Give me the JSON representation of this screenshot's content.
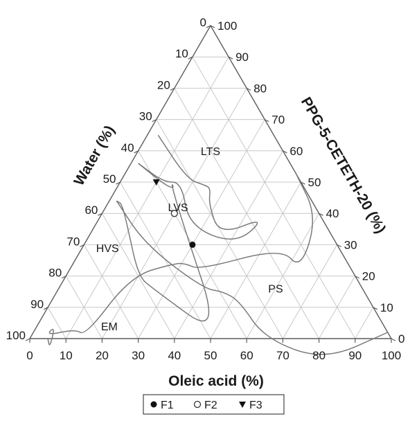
{
  "chart_data": {
    "type": "ternary",
    "axes": {
      "bottom": {
        "label": "Oleic acid (%)",
        "ticks": [
          "0",
          "10",
          "20",
          "30",
          "40",
          "50",
          "60",
          "70",
          "80",
          "90",
          "100"
        ]
      },
      "left": {
        "label": "Water (%)",
        "ticks": [
          "0",
          "10",
          "20",
          "30",
          "40",
          "50",
          "60",
          "70",
          "80",
          "90",
          "100"
        ]
      },
      "right": {
        "label": "PPG-5-CETETH-20 (%)",
        "ticks": [
          "0",
          "10",
          "20",
          "30",
          "40",
          "50",
          "60",
          "70",
          "80",
          "90",
          "100"
        ]
      }
    },
    "regions": [
      {
        "label": "LTS",
        "oleic": 20,
        "water": 20
      },
      {
        "label": "LVS",
        "oleic": 20,
        "water": 38
      },
      {
        "label": "HVS",
        "oleic": 7,
        "water": 64
      },
      {
        "label": "PS",
        "oleic": 60,
        "water": 24
      },
      {
        "label": "EM",
        "oleic": 20,
        "water": 76
      }
    ],
    "boundaries": [
      {
        "name": "lvs-region-boundary",
        "points": [
          [
            3,
            32
          ],
          [
            18,
            31
          ],
          [
            24,
            27
          ],
          [
            26,
            26
          ],
          [
            28,
            29
          ],
          [
            36,
            31
          ],
          [
            46,
            15
          ],
          [
            42,
            28
          ],
          [
            26,
            38
          ],
          [
            17,
            33
          ],
          [
            12,
            38
          ],
          [
            2,
            42
          ]
        ]
      },
      {
        "name": "hvs-region-boundary",
        "points": [
          [
            2,
            54
          ],
          [
            4,
            53
          ],
          [
            9,
            55
          ],
          [
            20,
            60
          ],
          [
            26,
            58
          ],
          [
            53,
            47
          ],
          [
            23,
            39
          ],
          [
            14,
            36
          ],
          [
            16,
            36
          ],
          [
            13,
            38
          ],
          [
            2,
            42
          ]
        ]
      },
      {
        "name": "ps-region-boundary",
        "points": [
          [
            2,
            54
          ],
          [
            17,
            53
          ],
          [
            40,
            44
          ],
          [
            46,
            39
          ],
          [
            52,
            36
          ],
          [
            65,
            35
          ],
          [
            85,
            22
          ],
          [
            98,
            0
          ]
        ]
      },
      {
        "name": "em-region-boundary",
        "points": [
          [
            47,
            0
          ],
          [
            60,
            1
          ],
          [
            64,
            14
          ],
          [
            55,
            16
          ],
          [
            36,
            42
          ],
          [
            31,
            45
          ],
          [
            28,
            48
          ],
          [
            18,
            62
          ],
          [
            15,
            84
          ],
          [
            11,
            86
          ],
          [
            4,
            95
          ],
          [
            5,
            91
          ],
          [
            7,
            96
          ],
          [
            5,
            95
          ]
        ]
      }
    ],
    "points": [
      {
        "name": "F1",
        "symbol": "filled-circle",
        "oleic": 30,
        "water": 40
      },
      {
        "name": "F2",
        "symbol": "open-circle",
        "oleic": 20,
        "water": 40
      },
      {
        "name": "F3",
        "symbol": "filled-triangle-down",
        "oleic": 10,
        "water": 40
      }
    ],
    "legend": {
      "placement": "bottom-center",
      "entries": [
        "F1",
        "F2",
        "F3"
      ]
    },
    "grid": true
  }
}
